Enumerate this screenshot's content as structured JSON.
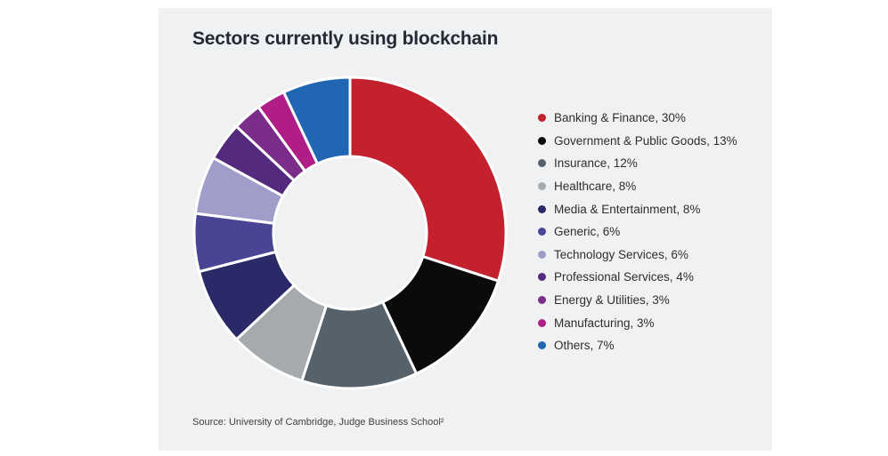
{
  "page": {
    "background": "#ffffff"
  },
  "panel": {
    "background": "#f0f1f3"
  },
  "header": {
    "title": "Sectors currently using blockchain",
    "title_color": "#222a35"
  },
  "footer": {
    "source": "Source: University of Cambridge, Judge Business School²"
  },
  "chart_data": {
    "type": "pie",
    "subtype": "donut",
    "title": "Sectors currently using blockchain",
    "start_angle_deg": 0,
    "direction": "clockwise",
    "inner_radius_ratio": 0.49,
    "slice_border_color": "#ffffff",
    "legend_position": "right",
    "legend_format": "{label}, {value}%",
    "series": [
      {
        "label": "Banking & Finance",
        "value": 30,
        "color": "#c2212d"
      },
      {
        "label": "Government & Public Goods",
        "value": 13,
        "color": "#0b0b0c"
      },
      {
        "label": "Insurance",
        "value": 12,
        "color": "#55626c"
      },
      {
        "label": "Healthcare",
        "value": 8,
        "color": "#a6aaad"
      },
      {
        "label": "Media & Entertainment",
        "value": 8,
        "color": "#2b2a68"
      },
      {
        "label": "Generic",
        "value": 6,
        "color": "#4a4494"
      },
      {
        "label": "Technology Services",
        "value": 6,
        "color": "#a19dcb"
      },
      {
        "label": "Professional Services",
        "value": 4,
        "color": "#542a7e"
      },
      {
        "label": "Energy & Utilities",
        "value": 3,
        "color": "#7b2d8a"
      },
      {
        "label": "Manufacturing",
        "value": 3,
        "color": "#b01d86"
      },
      {
        "label": "Others",
        "value": 7,
        "color": "#2066b2"
      }
    ]
  }
}
